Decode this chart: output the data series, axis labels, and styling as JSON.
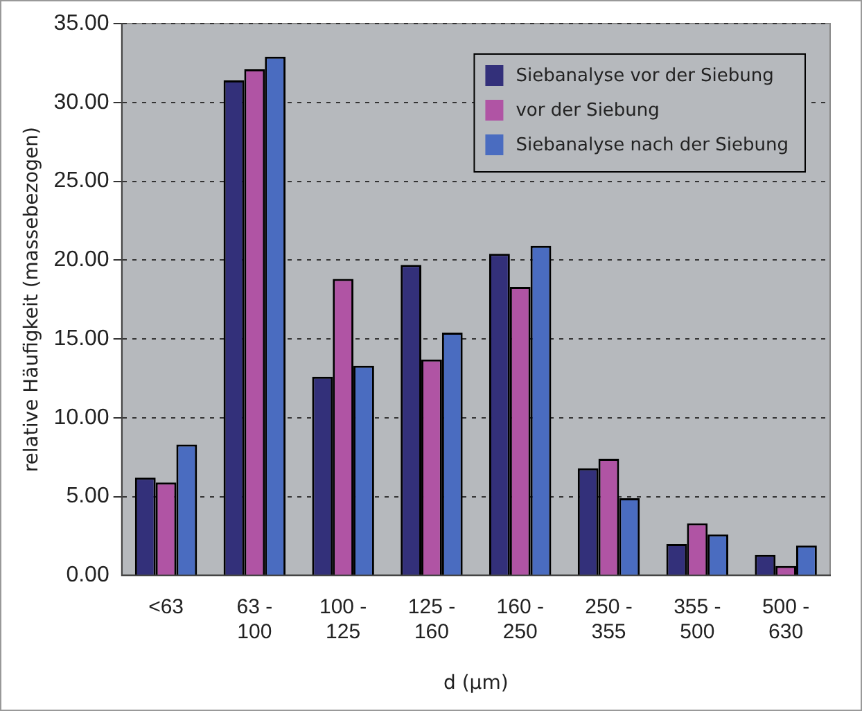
{
  "chart_data": {
    "type": "bar",
    "xlabel": "d (µm)",
    "ylabel": "relative Häufigkeit (massebezogen)",
    "categories": [
      "<63",
      "63 - 100",
      "100 - 125",
      "125 - 160",
      "160 - 250",
      "250 - 355",
      "355 - 500",
      "500 - 630"
    ],
    "series": [
      {
        "name": "Siebanalyse vor der Siebung",
        "color": "#33307a",
        "values": [
          6.2,
          31.4,
          12.6,
          19.7,
          20.4,
          6.8,
          2.0,
          1.3
        ]
      },
      {
        "name": "vor der Siebung",
        "color": "#b054a4",
        "values": [
          5.9,
          32.1,
          18.8,
          13.7,
          18.3,
          7.4,
          3.3,
          0.6
        ]
      },
      {
        "name": "Siebanalyse nach der Siebung",
        "color": "#4a6cc0",
        "values": [
          8.3,
          32.9,
          13.3,
          15.4,
          20.9,
          4.9,
          2.6,
          1.9
        ]
      }
    ],
    "ylim": [
      0,
      35
    ],
    "yticks": [
      {
        "value": 0,
        "label": "0.00"
      },
      {
        "value": 5,
        "label": "5.00"
      },
      {
        "value": 10,
        "label": "10.00"
      },
      {
        "value": 15,
        "label": "15.00"
      },
      {
        "value": 20,
        "label": "20.00"
      },
      {
        "value": 25,
        "label": "25.00"
      },
      {
        "value": 30,
        "label": "30.00"
      },
      {
        "value": 35,
        "label": "35.00"
      }
    ],
    "grid": "y",
    "legend": "top right"
  }
}
